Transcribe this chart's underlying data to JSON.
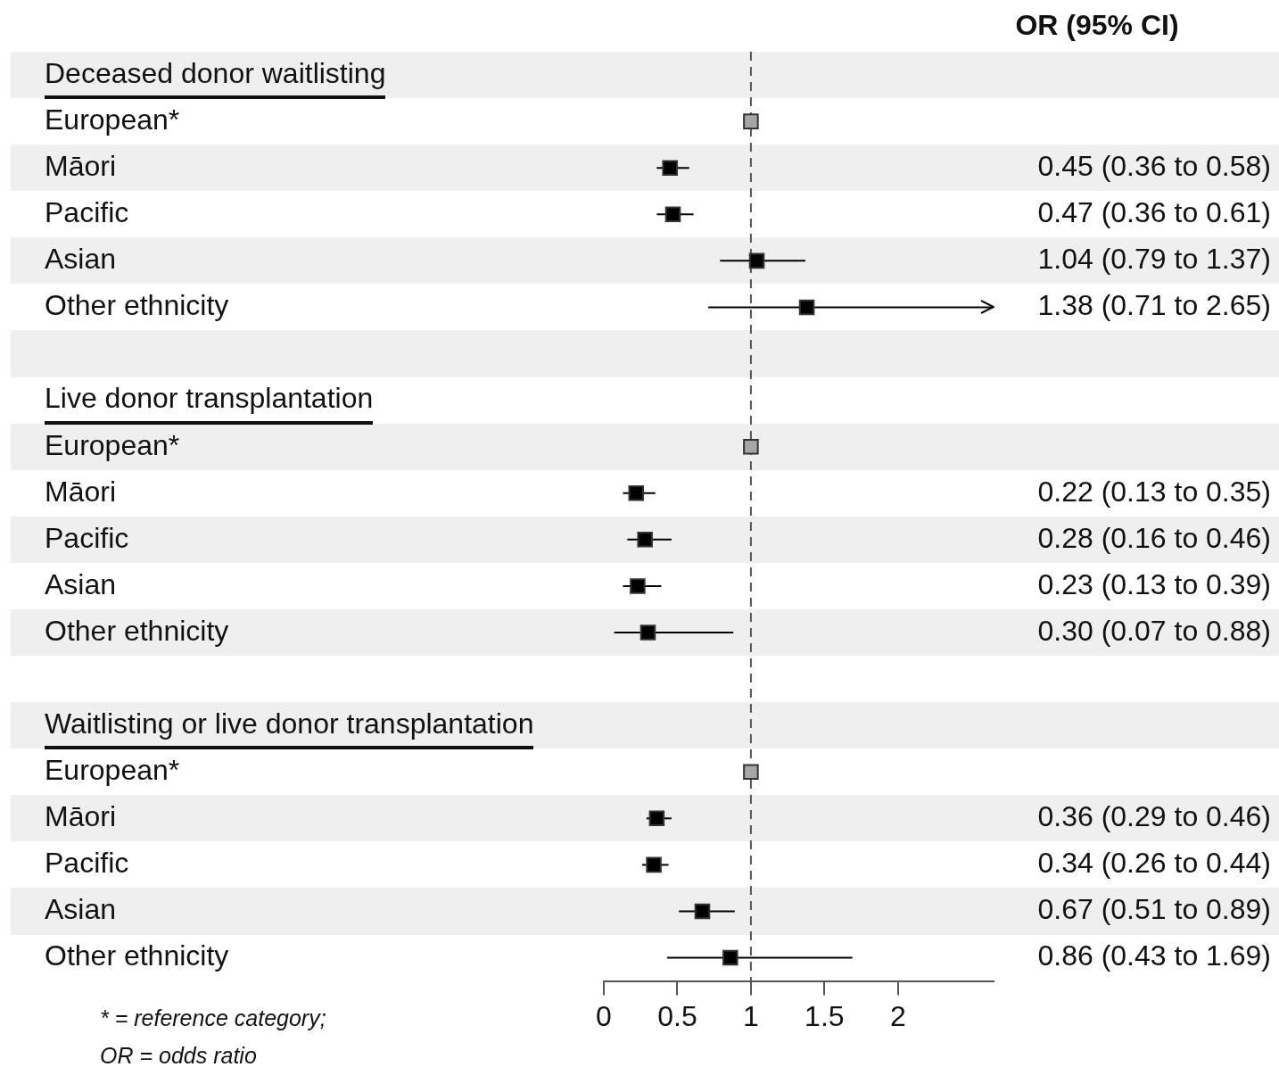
{
  "chart_data": {
    "type": "scatter",
    "orientation": "horizontal",
    "marker": "square",
    "grid": false,
    "legend": false,
    "categories": [
      "Deceased donor waitlisting",
      "European*",
      "Māori",
      "Pacific",
      "Asian",
      "Other ethnicity",
      null,
      "Live donor transplantation",
      "European*",
      "Māori",
      "Pacific",
      "Asian",
      "Other ethnicity",
      null,
      "Waitlisting or live donor transplantation",
      "European*",
      "Māori",
      "Pacific",
      "Asian",
      "Other ethnicity"
    ],
    "values": [
      null,
      1,
      0.45,
      0.47,
      1.04,
      1.38,
      null,
      null,
      1,
      0.22,
      0.28,
      0.23,
      0.3,
      null,
      null,
      1,
      0.36,
      0.34,
      0.67,
      0.86
    ],
    "errors": [
      null,
      null,
      [
        0.36,
        0.58
      ],
      [
        0.36,
        0.61
      ],
      [
        0.79,
        1.37
      ],
      [
        0.71,
        2.65
      ],
      null,
      null,
      null,
      [
        0.13,
        0.35
      ],
      [
        0.16,
        0.46
      ],
      [
        0.13,
        0.39
      ],
      [
        0.07,
        0.88
      ],
      null,
      null,
      null,
      [
        0.29,
        0.46
      ],
      [
        0.26,
        0.44
      ],
      [
        0.51,
        0.89
      ],
      [
        0.43,
        1.69
      ]
    ],
    "value_labels": [
      null,
      null,
      "0.45 (0.36 to 0.58)",
      "0.47 (0.36 to 0.61)",
      "1.04 (0.79 to 1.37)",
      "1.38 (0.71 to 2.65)",
      null,
      null,
      null,
      "0.22 (0.13 to 0.35)",
      "0.28 (0.16 to 0.46)",
      "0.23 (0.13 to 0.39)",
      "0.30 (0.07 to 0.88)",
      null,
      null,
      null,
      "0.36 (0.29 to 0.46)",
      "0.34 (0.26 to 0.44)",
      "0.67 (0.51 to 0.89)",
      "0.86 (0.43 to 1.69)"
    ],
    "colors": [
      null,
      "#a6a6a6",
      "#000000",
      "#000000",
      "#000000",
      "#000000",
      null,
      null,
      "#a6a6a6",
      "#000000",
      "#000000",
      "#000000",
      "#000000",
      null,
      null,
      "#a6a6a6",
      "#000000",
      "#000000",
      "#000000",
      "#000000"
    ],
    "xlim": [
      0,
      2.65
    ],
    "xticks": [
      0,
      0.5,
      1,
      1.5,
      2
    ],
    "ref_lines": [
      {
        "axis": "x",
        "value": 1,
        "color": "#555555",
        "line_style": "dashed"
      }
    ],
    "annotations": [
      "OR (95% CI)",
      "* = reference category;",
      "OR = odds ratio"
    ]
  }
}
